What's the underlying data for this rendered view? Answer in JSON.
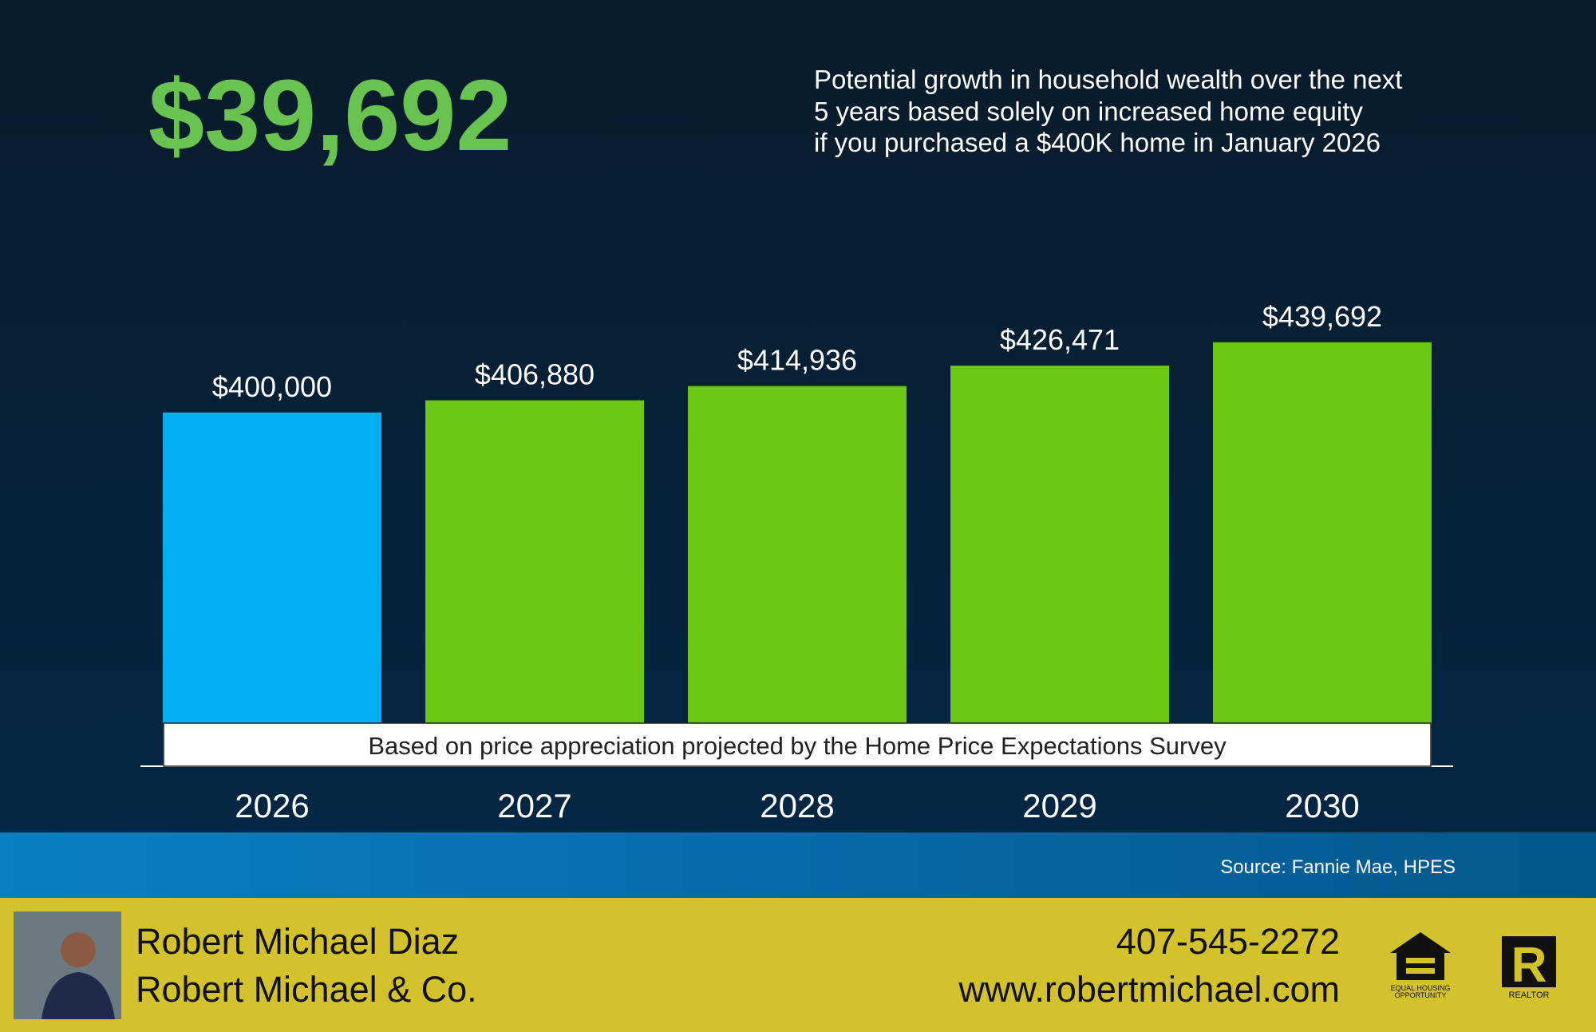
{
  "chart_data": {
    "type": "bar",
    "headline": "$39,692",
    "subtitle": [
      "Potential growth in household wealth over the next",
      "5 years based solely on increased home equity",
      "if you purchased a $400K home in January 2026"
    ],
    "categories": [
      "2026",
      "2027",
      "2028",
      "2029",
      "2030"
    ],
    "values": [
      400000,
      406880,
      414936,
      426471,
      439692
    ],
    "value_labels": [
      "$400,000",
      "$406,880",
      "$414,936",
      "$426,471",
      "$439,692"
    ],
    "colors": [
      "#00b0f0",
      "#6cc712",
      "#6cc712",
      "#6cc712",
      "#6cc712"
    ],
    "ylim": [
      200000,
      450000
    ],
    "note": "Based on price appreciation projected by the Home Price Expectations Survey",
    "source": "Source: Fannie Mae, HPES"
  },
  "footer": {
    "name": "Robert Michael Diaz",
    "company": "Robert Michael & Co.",
    "phone": "407-545-2272",
    "website": "www.robertmichael.com",
    "logos": [
      "EQUAL HOUSING",
      "OPPORTUNITY",
      "REALTOR"
    ]
  }
}
